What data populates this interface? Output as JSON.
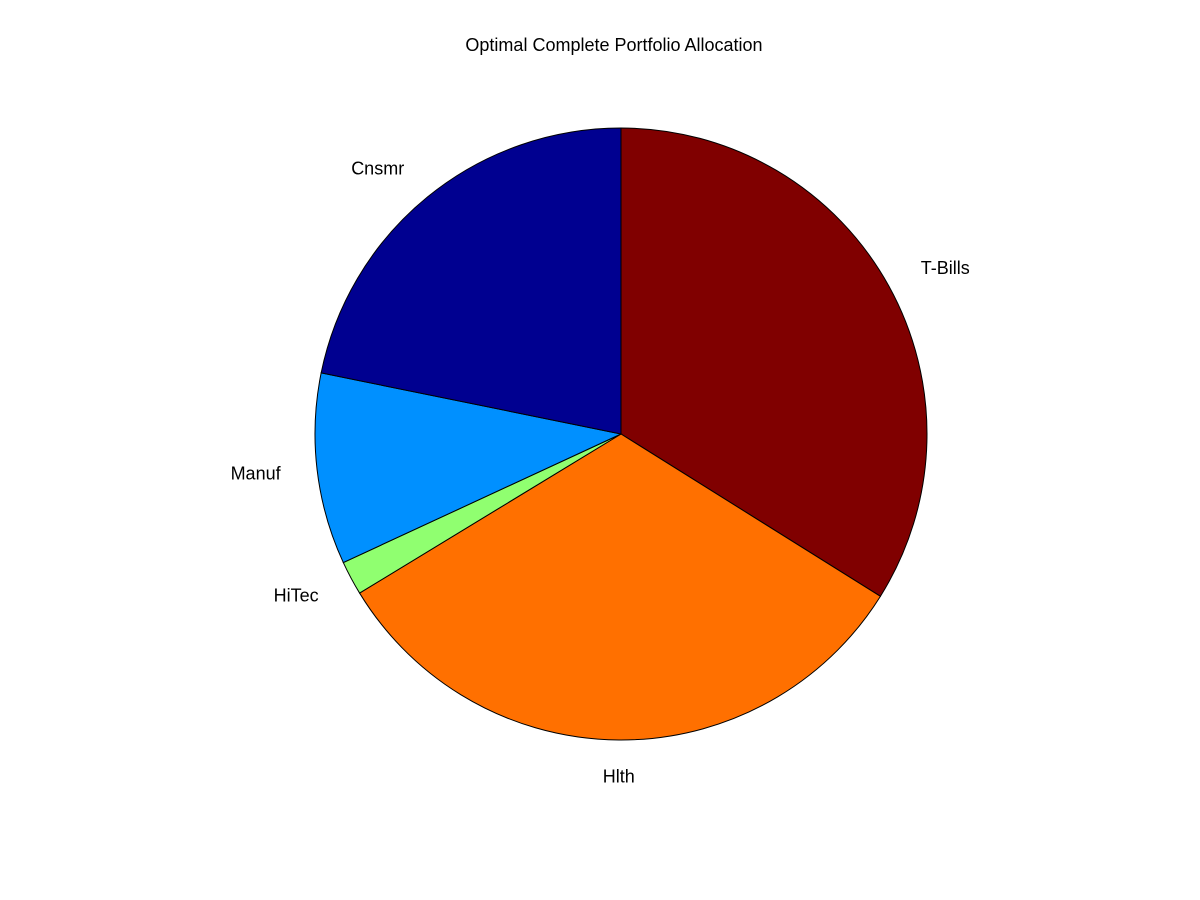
{
  "chart_data": {
    "type": "pie",
    "title": "Optimal Complete Portfolio Allocation",
    "legend": "none",
    "start_angle_deg": 90,
    "direction": "clockwise",
    "slices": [
      {
        "label": "T-Bills",
        "value": 33.9,
        "color": "#800000"
      },
      {
        "label": "Hlth",
        "value": 32.4,
        "color": "#FF7000"
      },
      {
        "label": "HiTec",
        "value": 1.8,
        "color": "#90FF70"
      },
      {
        "label": "Manuf",
        "value": 10.1,
        "color": "#0090FF"
      },
      {
        "label": "Cnsmr",
        "value": 21.8,
        "color": "#000090"
      }
    ]
  }
}
